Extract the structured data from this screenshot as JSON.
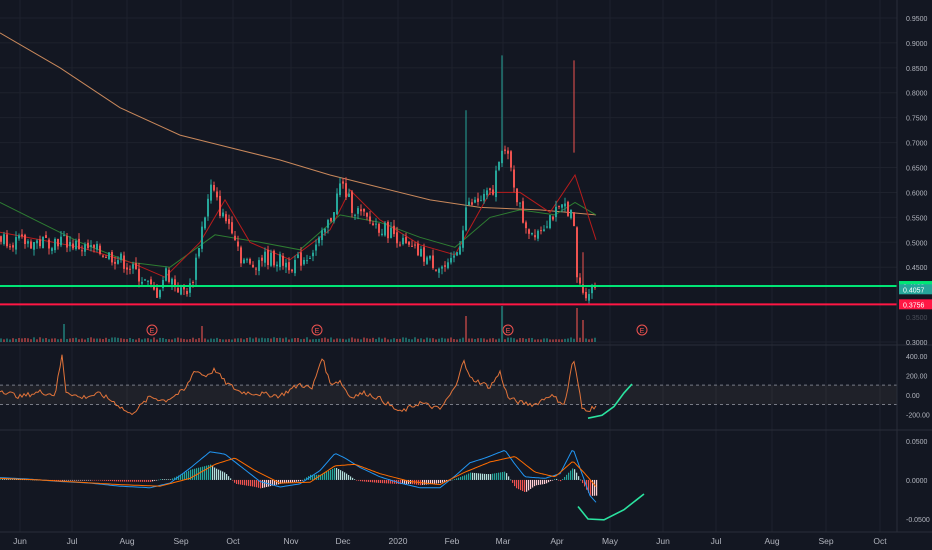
{
  "theme": {
    "background": "#131722",
    "grid": "#1e222d",
    "separator": "#2a2e39",
    "axis_text": "#b2b5be",
    "up": "#26a69a",
    "down": "#ef5350",
    "ma_slow": "#c9885b",
    "ma_mid": "#2e7d32",
    "ma_fast": "#b71c1c",
    "support_green": "#00e676",
    "support_red": "#ff1744",
    "cci_line": "#e0733a",
    "macd_line": "#2196f3",
    "signal_line": "#ff6d00",
    "annotation": "#2be3a0"
  },
  "x_axis": {
    "labels": [
      "Jun",
      "Jul",
      "Aug",
      "Sep",
      "Oct",
      "Nov",
      "Dec",
      "2020",
      "Feb",
      "Mar",
      "Apr",
      "May",
      "Jun",
      "Jul",
      "Aug",
      "Sep",
      "Oct"
    ]
  },
  "earnings_marker": "E",
  "chart_data": [
    {
      "type": "candlestick",
      "pane": "price",
      "ylim": [
        0.3,
        0.97
      ],
      "y_ticks": [
        "0.9500",
        "0.9000",
        "0.8500",
        "0.8000",
        "0.7500",
        "0.7000",
        "0.6500",
        "0.6000",
        "0.5500",
        "0.5000",
        "0.4500",
        "0.3000"
      ],
      "anchors": [
        [
          0,
          0.51
        ],
        [
          20,
          0.5
        ],
        [
          40,
          0.5
        ],
        [
          60,
          0.505
        ],
        [
          80,
          0.49
        ],
        [
          100,
          0.48
        ],
        [
          120,
          0.465
        ],
        [
          140,
          0.43
        ],
        [
          155,
          0.395
        ],
        [
          165,
          0.44
        ],
        [
          180,
          0.4
        ],
        [
          190,
          0.41
        ],
        [
          200,
          0.52
        ],
        [
          210,
          0.61
        ],
        [
          222,
          0.55
        ],
        [
          232,
          0.53
        ],
        [
          240,
          0.47
        ],
        [
          250,
          0.45
        ],
        [
          260,
          0.47
        ],
        [
          275,
          0.465
        ],
        [
          290,
          0.455
        ],
        [
          305,
          0.47
        ],
        [
          320,
          0.505
        ],
        [
          330,
          0.55
        ],
        [
          340,
          0.62
        ],
        [
          350,
          0.575
        ],
        [
          365,
          0.545
        ],
        [
          380,
          0.53
        ],
        [
          395,
          0.515
        ],
        [
          405,
          0.49
        ],
        [
          420,
          0.475
        ],
        [
          435,
          0.455
        ],
        [
          448,
          0.445
        ],
        [
          458,
          0.49
        ],
        [
          465,
          0.57
        ],
        [
          480,
          0.585
        ],
        [
          492,
          0.6
        ],
        [
          500,
          0.7
        ],
        [
          508,
          0.66
        ],
        [
          515,
          0.6
        ],
        [
          522,
          0.545
        ],
        [
          530,
          0.52
        ],
        [
          540,
          0.53
        ],
        [
          550,
          0.555
        ],
        [
          558,
          0.56
        ],
        [
          565,
          0.575
        ],
        [
          572,
          0.55
        ],
        [
          576,
          0.43
        ],
        [
          580,
          0.405
        ],
        [
          586,
          0.4
        ],
        [
          592,
          0.41
        ],
        [
          596,
          0.415
        ]
      ],
      "spikes": [
        {
          "x": 465,
          "high": 0.765
        },
        {
          "x": 500,
          "high": 0.875
        },
        {
          "x": 572,
          "high": 0.865,
          "low": 0.68
        },
        {
          "x": 581,
          "high": 0.48
        }
      ],
      "ma_slow": [
        [
          0,
          0.92
        ],
        [
          60,
          0.85
        ],
        [
          120,
          0.77
        ],
        [
          180,
          0.715
        ],
        [
          230,
          0.69
        ],
        [
          280,
          0.665
        ],
        [
          330,
          0.635
        ],
        [
          380,
          0.61
        ],
        [
          430,
          0.585
        ],
        [
          480,
          0.57
        ],
        [
          540,
          0.565
        ],
        [
          596,
          0.555
        ]
      ],
      "ma_mid": [
        [
          0,
          0.58
        ],
        [
          40,
          0.54
        ],
        [
          80,
          0.5
        ],
        [
          130,
          0.46
        ],
        [
          170,
          0.45
        ],
        [
          215,
          0.515
        ],
        [
          260,
          0.5
        ],
        [
          300,
          0.485
        ],
        [
          340,
          0.555
        ],
        [
          380,
          0.54
        ],
        [
          420,
          0.51
        ],
        [
          455,
          0.49
        ],
        [
          490,
          0.55
        ],
        [
          520,
          0.565
        ],
        [
          555,
          0.555
        ],
        [
          575,
          0.58
        ],
        [
          596,
          0.555
        ]
      ],
      "ma_fast": [
        [
          0,
          0.52
        ],
        [
          40,
          0.505
        ],
        [
          80,
          0.49
        ],
        [
          130,
          0.46
        ],
        [
          165,
          0.43
        ],
        [
          200,
          0.5
        ],
        [
          225,
          0.585
        ],
        [
          250,
          0.5
        ],
        [
          290,
          0.465
        ],
        [
          330,
          0.525
        ],
        [
          350,
          0.605
        ],
        [
          380,
          0.545
        ],
        [
          420,
          0.495
        ],
        [
          455,
          0.475
        ],
        [
          490,
          0.6
        ],
        [
          520,
          0.6
        ],
        [
          550,
          0.56
        ],
        [
          575,
          0.635
        ],
        [
          596,
          0.505
        ]
      ],
      "volume_spikes": [
        {
          "x": 62,
          "v": 0.045
        },
        {
          "x": 200,
          "v": 0.04
        },
        {
          "x": 465,
          "v": 0.065
        },
        {
          "x": 500,
          "v": 0.09
        },
        {
          "x": 575,
          "v": 0.085
        },
        {
          "x": 581,
          "v": 0.055
        }
      ],
      "earnings_x": [
        152,
        317,
        508,
        642
      ],
      "levels": [
        {
          "name": "green-level",
          "value": 0.4123,
          "label": "0.4123",
          "color": "#00e676"
        },
        {
          "name": "current-price",
          "value": 0.4057,
          "label": "0.4057",
          "color": "#26a69a"
        },
        {
          "name": "red-level",
          "value": 0.3756,
          "label": "0.3756",
          "color": "#ff1744"
        }
      ],
      "hidden_tick_label": "0.3500"
    },
    {
      "type": "line",
      "pane": "cci",
      "ylim": [
        -320,
        470
      ],
      "y_ticks": [
        "400.00",
        "200.00",
        "0.00",
        "-200.00"
      ],
      "band": [
        -100,
        100
      ],
      "series": [
        [
          0,
          50
        ],
        [
          20,
          -20
        ],
        [
          40,
          30
        ],
        [
          55,
          0
        ],
        [
          62,
          400
        ],
        [
          66,
          40
        ],
        [
          80,
          -30
        ],
        [
          100,
          10
        ],
        [
          115,
          -80
        ],
        [
          130,
          -200
        ],
        [
          140,
          -120
        ],
        [
          150,
          -20
        ],
        [
          165,
          -60
        ],
        [
          185,
          50
        ],
        [
          195,
          260
        ],
        [
          205,
          190
        ],
        [
          215,
          260
        ],
        [
          225,
          130
        ],
        [
          240,
          30
        ],
        [
          260,
          10
        ],
        [
          280,
          -10
        ],
        [
          300,
          110
        ],
        [
          312,
          60
        ],
        [
          322,
          390
        ],
        [
          330,
          120
        ],
        [
          340,
          140
        ],
        [
          350,
          -20
        ],
        [
          365,
          20
        ],
        [
          380,
          -40
        ],
        [
          400,
          -180
        ],
        [
          420,
          -80
        ],
        [
          440,
          -150
        ],
        [
          455,
          70
        ],
        [
          463,
          360
        ],
        [
          470,
          170
        ],
        [
          480,
          130
        ],
        [
          490,
          80
        ],
        [
          500,
          230
        ],
        [
          508,
          -30
        ],
        [
          520,
          -80
        ],
        [
          535,
          -100
        ],
        [
          550,
          0
        ],
        [
          565,
          -100
        ],
        [
          573,
          380
        ],
        [
          578,
          120
        ],
        [
          582,
          -140
        ],
        [
          590,
          -150
        ],
        [
          597,
          -100
        ]
      ],
      "annotation_curve": [
        [
          588,
          -240
        ],
        [
          602,
          -210
        ],
        [
          614,
          -120
        ],
        [
          624,
          20
        ],
        [
          632,
          110
        ]
      ]
    },
    {
      "type": "bar",
      "pane": "macd",
      "ylim": [
        -0.064,
        0.06
      ],
      "y_ticks": [
        "0.0500",
        "0.0000",
        "-0.0500"
      ],
      "macd": [
        [
          0,
          0.003
        ],
        [
          30,
          0.001
        ],
        [
          60,
          -0.002
        ],
        [
          90,
          -0.004
        ],
        [
          120,
          -0.008
        ],
        [
          150,
          -0.01
        ],
        [
          170,
          -0.004
        ],
        [
          190,
          0.015
        ],
        [
          210,
          0.036
        ],
        [
          225,
          0.033
        ],
        [
          240,
          0.018
        ],
        [
          260,
          -0.002
        ],
        [
          280,
          -0.009
        ],
        [
          300,
          -0.005
        ],
        [
          320,
          0.012
        ],
        [
          335,
          0.034
        ],
        [
          345,
          0.028
        ],
        [
          360,
          0.016
        ],
        [
          380,
          0.004
        ],
        [
          400,
          -0.004
        ],
        [
          420,
          -0.01
        ],
        [
          440,
          -0.01
        ],
        [
          455,
          0.005
        ],
        [
          470,
          0.022
        ],
        [
          485,
          0.028
        ],
        [
          495,
          0.033
        ],
        [
          505,
          0.038
        ],
        [
          515,
          0.02
        ],
        [
          525,
          0.004
        ],
        [
          545,
          0.002
        ],
        [
          560,
          0.008
        ],
        [
          573,
          0.04
        ],
        [
          580,
          0.015
        ],
        [
          590,
          -0.02
        ],
        [
          597,
          -0.03
        ]
      ],
      "signal": [
        [
          0,
          0.002
        ],
        [
          40,
          0.0
        ],
        [
          80,
          -0.003
        ],
        [
          120,
          -0.006
        ],
        [
          160,
          -0.008
        ],
        [
          190,
          0.002
        ],
        [
          215,
          0.02
        ],
        [
          235,
          0.028
        ],
        [
          255,
          0.012
        ],
        [
          280,
          -0.004
        ],
        [
          310,
          -0.003
        ],
        [
          335,
          0.018
        ],
        [
          355,
          0.02
        ],
        [
          380,
          0.008
        ],
        [
          410,
          -0.002
        ],
        [
          440,
          -0.006
        ],
        [
          465,
          0.01
        ],
        [
          490,
          0.023
        ],
        [
          515,
          0.03
        ],
        [
          535,
          0.01
        ],
        [
          555,
          0.004
        ],
        [
          573,
          0.024
        ],
        [
          585,
          0.008
        ],
        [
          597,
          -0.01
        ]
      ],
      "annotation_curve": [
        [
          578,
          -0.034
        ],
        [
          588,
          -0.05
        ],
        [
          604,
          -0.051
        ],
        [
          624,
          -0.038
        ],
        [
          644,
          -0.018
        ]
      ]
    }
  ]
}
